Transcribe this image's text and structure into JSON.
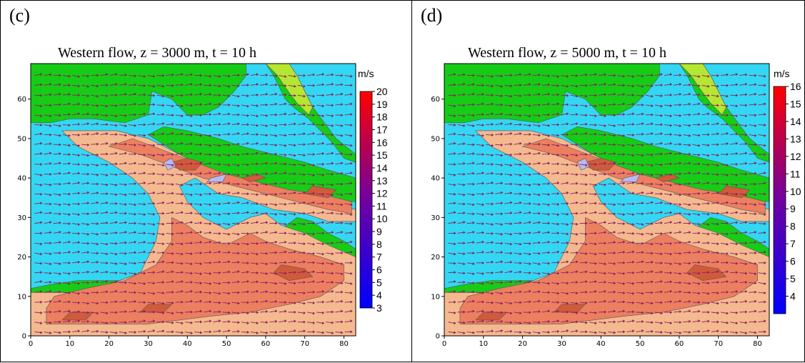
{
  "colors": {
    "sea": "#33d7f3",
    "land": "#16cc16",
    "lowland": "#b5e632",
    "wind_low": "#f4b98e",
    "wind_mid": "#ec7f5f",
    "wind_high": "#d05a3a",
    "peak": "#b9b9f0",
    "contour": "#555555",
    "arrow": "#8a2060"
  },
  "chart_data": [
    {
      "type": "heatmap",
      "panel_label": "(c)",
      "title": "Western flow,  z = 3000 m, t = 10 h",
      "x_ticks": [
        0,
        10,
        20,
        30,
        40,
        50,
        60,
        70,
        80
      ],
      "y_ticks": [
        0,
        10,
        20,
        30,
        40,
        50,
        60
      ],
      "xlim": [
        0,
        83
      ],
      "ylim": [
        0,
        69
      ],
      "colorbar": {
        "unit": "m/s",
        "min": 3,
        "max": 20,
        "labels": [
          20,
          19,
          18,
          17,
          16,
          15,
          14,
          13,
          12,
          11,
          10,
          9,
          8,
          7,
          6,
          5,
          4,
          3
        ],
        "colors": [
          "#0000ff",
          "#7000a0",
          "#ff0000"
        ]
      },
      "vector_field": "western flow, predominantly eastward-pointing wind vectors"
    },
    {
      "type": "heatmap",
      "panel_label": "(d)",
      "title": "Western flow,  z = 5000 m, t = 10 h",
      "x_ticks": [
        0,
        10,
        20,
        30,
        40,
        50,
        60,
        70,
        80
      ],
      "y_ticks": [
        0,
        10,
        20,
        30,
        40,
        50,
        60
      ],
      "xlim": [
        0,
        83
      ],
      "ylim": [
        0,
        69
      ],
      "colorbar": {
        "unit": "m/s",
        "min": 3,
        "max": 16,
        "labels": [
          16,
          15,
          14,
          13,
          12,
          11,
          10,
          9,
          8,
          7,
          6,
          5,
          4
        ],
        "colors": [
          "#0000ff",
          "#7000a0",
          "#ff0000"
        ]
      },
      "vector_field": "western flow, predominantly eastward-pointing wind vectors"
    }
  ]
}
